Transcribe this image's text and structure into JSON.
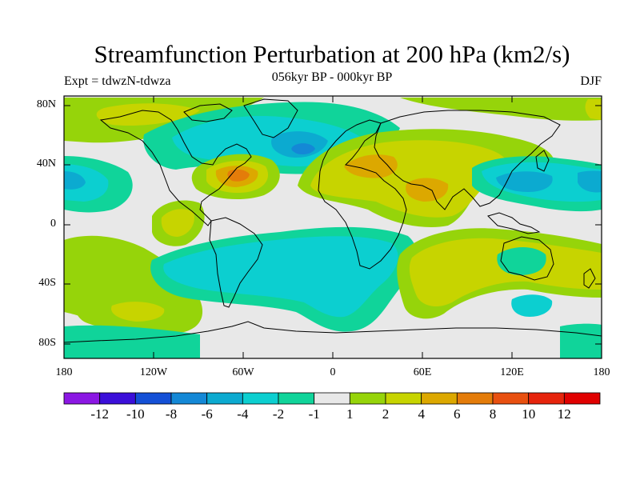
{
  "figure": {
    "title": "Streamfunction Perturbation at 200 hPa (km2/s)",
    "left_subtitle": "Expt = tdwzN-tdwza",
    "center_subtitle": "056kyr BP - 000kyr BP",
    "right_subtitle": "DJF"
  },
  "axes": {
    "lat_labels": [
      "80N",
      "40N",
      "0",
      "40S",
      "80S"
    ],
    "lon_labels": [
      "180",
      "120W",
      "60W",
      "0",
      "60E",
      "120E",
      "180"
    ]
  },
  "colorbar": {
    "labels": [
      "-12",
      "-10",
      "-8",
      "-6",
      "-4",
      "-2",
      "-1",
      "1",
      "2",
      "4",
      "6",
      "8",
      "10",
      "12"
    ],
    "colors": [
      "#8b17e3",
      "#3b0fd9",
      "#1450d6",
      "#1488d6",
      "#0caad0",
      "#0ccfd0",
      "#10d49a",
      "#e8e8e8",
      "#96d40a",
      "#c7d400",
      "#dca800",
      "#e47c0a",
      "#e85010",
      "#e6240c",
      "#e00000"
    ]
  },
  "palette": {
    "coastline": "#000000",
    "frame": "#000000",
    "background_field": "#e8e8e8"
  }
}
